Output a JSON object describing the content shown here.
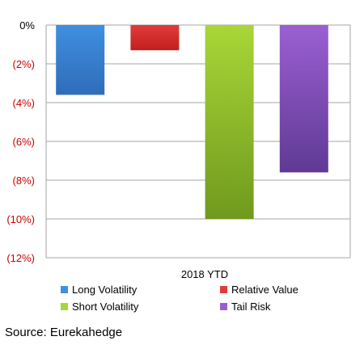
{
  "chart_data": {
    "type": "bar",
    "categories": [
      "2018 YTD"
    ],
    "series": [
      {
        "name": "Long Volatility",
        "values": [
          -3.6
        ],
        "color_top": "#3f8fe0",
        "color_bottom": "#2f6db8"
      },
      {
        "name": "Relative Value",
        "values": [
          -1.3
        ],
        "color_top": "#e23b3b",
        "color_bottom": "#c21f1f"
      },
      {
        "name": "Short Volatility",
        "values": [
          -10.0
        ],
        "color_top": "#a9d637",
        "color_bottom": "#6f9a1e"
      },
      {
        "name": "Tail Risk",
        "values": [
          -7.6
        ],
        "color_top": "#9b5fd2",
        "color_bottom": "#5f3a94"
      }
    ],
    "yticks": [
      0,
      -2,
      -4,
      -6,
      -8,
      -10,
      -12
    ],
    "ytick_labels": [
      "0%",
      "(2%)",
      "(4%)",
      "(6%)",
      "(8%)",
      "(10%)",
      "(12%)"
    ],
    "ylim": [
      -12,
      0
    ],
    "negative_tick_color": "#cc0000",
    "grid": true,
    "legend_position": "bottom"
  },
  "source": "Source: Eurekahedge"
}
